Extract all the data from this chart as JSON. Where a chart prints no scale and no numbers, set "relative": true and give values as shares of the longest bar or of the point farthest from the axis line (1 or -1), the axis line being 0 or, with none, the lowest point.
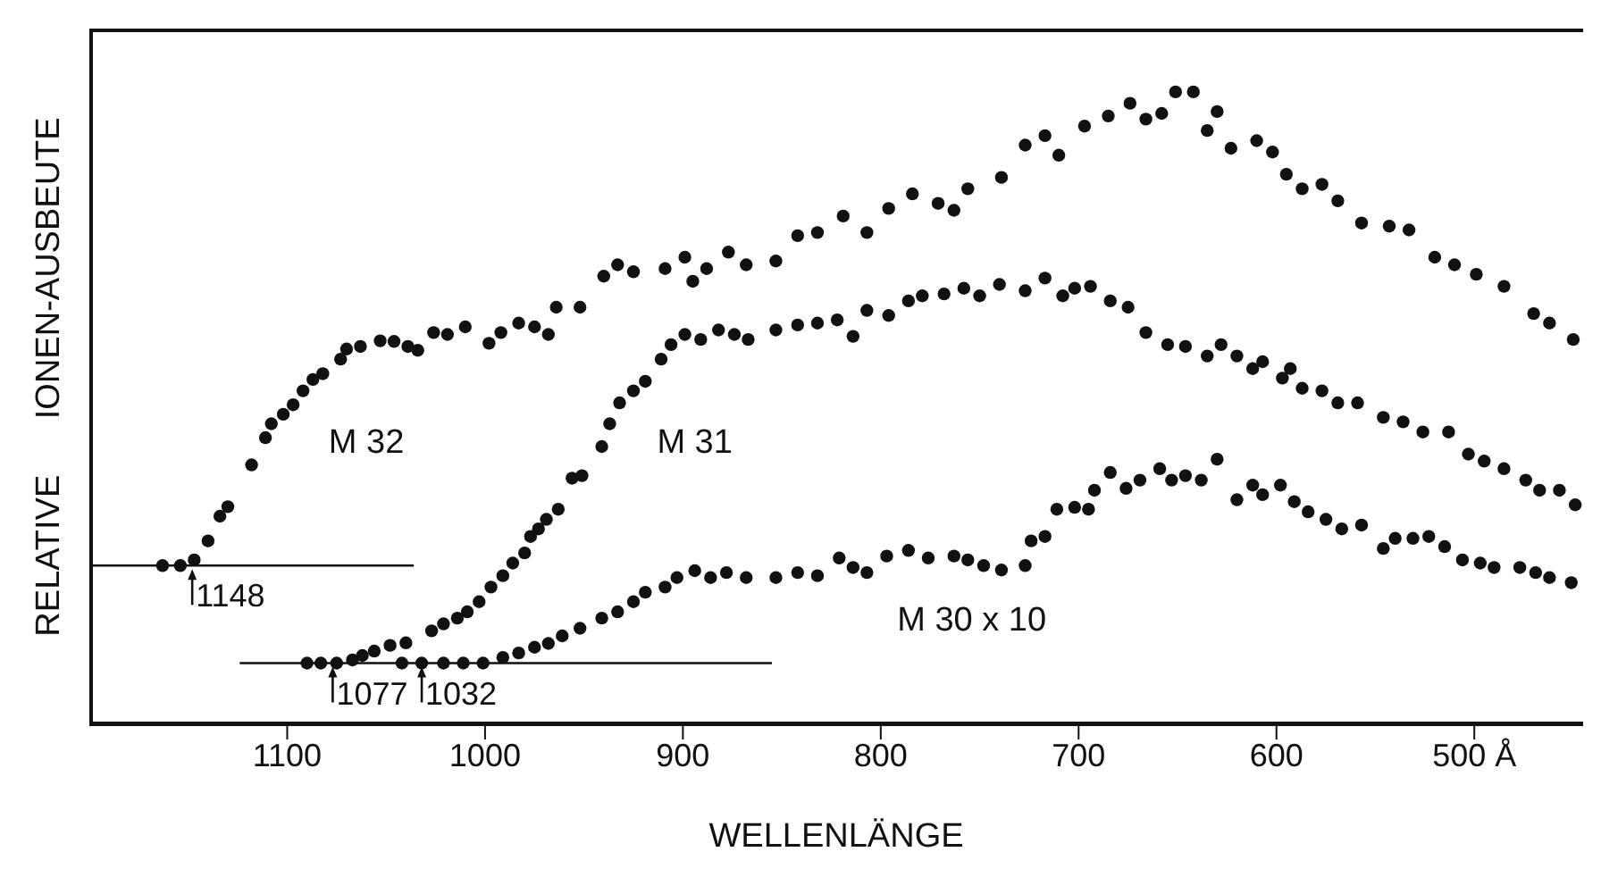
{
  "chart_data": {
    "type": "scatter",
    "relative": true,
    "xlabel": "WELLENLÄNGE",
    "ylabel": "RELATIVE IONEN-AUSBEUTE",
    "marker": "circle",
    "xlim": [
      1200,
      445
    ],
    "xticks": [
      1100,
      1000,
      900,
      800,
      700,
      600,
      {
        "value": 500,
        "label": "500 Å"
      }
    ],
    "series": [
      {
        "name": "M 32",
        "color": "#111111",
        "x": [
          1163,
          1154,
          1147,
          1140,
          1134,
          1130,
          1118,
          1111,
          1108,
          1102,
          1097,
          1092,
          1087,
          1082,
          1073,
          1070,
          1063,
          1053,
          1046,
          1039,
          1034,
          1026,
          1019,
          1010,
          998,
          992,
          983,
          975,
          968,
          964,
          952,
          940,
          933,
          925,
          909,
          899,
          895,
          888,
          877,
          868,
          853,
          842,
          832,
          819,
          807,
          796,
          784,
          771,
          763,
          756,
          739,
          727,
          717,
          710,
          697,
          685,
          674,
          666,
          658,
          651,
          642,
          635,
          630,
          623,
          610,
          602,
          595,
          587,
          577,
          569,
          557,
          543,
          533,
          520,
          510,
          499,
          485,
          470,
          462,
          450
        ],
        "values": [
          0.252,
          0.252,
          0.261,
          0.291,
          0.33,
          0.345,
          0.411,
          0.454,
          0.476,
          0.491,
          0.506,
          0.528,
          0.546,
          0.555,
          0.578,
          0.594,
          0.598,
          0.607,
          0.606,
          0.598,
          0.592,
          0.62,
          0.617,
          0.629,
          0.603,
          0.62,
          0.635,
          0.629,
          0.617,
          0.66,
          0.66,
          0.709,
          0.727,
          0.716,
          0.721,
          0.739,
          0.701,
          0.721,
          0.747,
          0.727,
          0.733,
          0.773,
          0.778,
          0.804,
          0.778,
          0.816,
          0.839,
          0.824,
          0.813,
          0.847,
          0.865,
          0.916,
          0.931,
          0.9,
          0.946,
          0.962,
          0.982,
          0.957,
          0.966,
          1.0,
          1.0,
          0.939,
          0.969,
          0.911,
          0.923,
          0.905,
          0.87,
          0.847,
          0.854,
          0.828,
          0.793,
          0.788,
          0.782,
          0.739,
          0.727,
          0.712,
          0.693,
          0.65,
          0.635,
          0.609
        ]
      },
      {
        "name": "M 31",
        "color": "#111111",
        "x": [
          1090,
          1083,
          1075,
          1067,
          1062,
          1056,
          1048,
          1040,
          1027,
          1021,
          1014,
          1009,
          1003,
          997,
          991,
          986,
          980,
          977,
          973,
          969,
          963,
          956,
          951,
          941,
          937,
          932,
          925,
          919,
          911,
          906,
          899,
          891,
          882,
          874,
          867,
          853,
          842,
          832,
          822,
          814,
          807,
          796,
          786,
          779,
          768,
          758,
          750,
          740,
          727,
          717,
          708,
          702,
          694,
          684,
          675,
          666,
          655,
          646,
          635,
          628,
          620,
          612,
          607,
          597,
          593,
          587,
          577,
          569,
          559,
          546,
          536,
          526,
          513,
          503,
          495,
          485,
          474,
          467,
          457,
          449
        ],
        "values": [
          0.098,
          0.098,
          0.098,
          0.103,
          0.11,
          0.117,
          0.126,
          0.13,
          0.149,
          0.16,
          0.169,
          0.179,
          0.195,
          0.218,
          0.236,
          0.256,
          0.272,
          0.298,
          0.31,
          0.325,
          0.341,
          0.39,
          0.394,
          0.44,
          0.476,
          0.509,
          0.528,
          0.543,
          0.578,
          0.601,
          0.617,
          0.609,
          0.624,
          0.617,
          0.609,
          0.624,
          0.632,
          0.635,
          0.64,
          0.614,
          0.655,
          0.647,
          0.67,
          0.678,
          0.681,
          0.69,
          0.678,
          0.696,
          0.686,
          0.706,
          0.678,
          0.69,
          0.693,
          0.67,
          0.66,
          0.62,
          0.601,
          0.598,
          0.583,
          0.601,
          0.583,
          0.563,
          0.574,
          0.548,
          0.563,
          0.532,
          0.528,
          0.509,
          0.509,
          0.486,
          0.479,
          0.463,
          0.463,
          0.428,
          0.417,
          0.405,
          0.387,
          0.371,
          0.371,
          0.348
        ]
      },
      {
        "name": "M 30 x 10",
        "color": "#111111",
        "x": [
          1042,
          1032,
          1021,
          1011,
          1001,
          991,
          983,
          975,
          968,
          961,
          952,
          941,
          933,
          925,
          919,
          909,
          903,
          894,
          886,
          878,
          868,
          853,
          842,
          832,
          821,
          814,
          807,
          797,
          786,
          776,
          763,
          756,
          748,
          739,
          727,
          724,
          717,
          711,
          702,
          695,
          692,
          684,
          676,
          669,
          659,
          653,
          646,
          638,
          630,
          620,
          612,
          607,
          598,
          591,
          584,
          575,
          567,
          557,
          546,
          540,
          531,
          523,
          515,
          506,
          497,
          490,
          477,
          469,
          462,
          451
        ],
        "values": [
          0.098,
          0.098,
          0.098,
          0.098,
          0.098,
          0.107,
          0.114,
          0.123,
          0.129,
          0.141,
          0.153,
          0.169,
          0.179,
          0.195,
          0.21,
          0.218,
          0.233,
          0.244,
          0.233,
          0.241,
          0.233,
          0.233,
          0.241,
          0.236,
          0.264,
          0.249,
          0.241,
          0.267,
          0.276,
          0.264,
          0.267,
          0.261,
          0.252,
          0.245,
          0.252,
          0.291,
          0.298,
          0.341,
          0.344,
          0.341,
          0.371,
          0.399,
          0.374,
          0.387,
          0.405,
          0.387,
          0.394,
          0.387,
          0.42,
          0.356,
          0.379,
          0.364,
          0.379,
          0.353,
          0.337,
          0.325,
          0.31,
          0.316,
          0.279,
          0.295,
          0.295,
          0.298,
          0.282,
          0.261,
          0.256,
          0.249,
          0.249,
          0.241,
          0.233,
          0.225
        ]
      },
      {
        "type": "line",
        "marker": "none",
        "color": "#111111",
        "x": [
          1200,
          1036
        ],
        "values": [
          0.252,
          0.252
        ]
      },
      {
        "type": "line",
        "marker": "none",
        "color": "#111111",
        "x": [
          1124,
          855
        ],
        "values": [
          0.098,
          0.098
        ]
      }
    ],
    "annotations": [
      {
        "text": "1148",
        "x": 1148,
        "y": 0.252
      },
      {
        "text": "1077",
        "x": 1077,
        "y": 0.098
      },
      {
        "text": "1032",
        "x": 1032,
        "y": 0.098
      }
    ]
  }
}
